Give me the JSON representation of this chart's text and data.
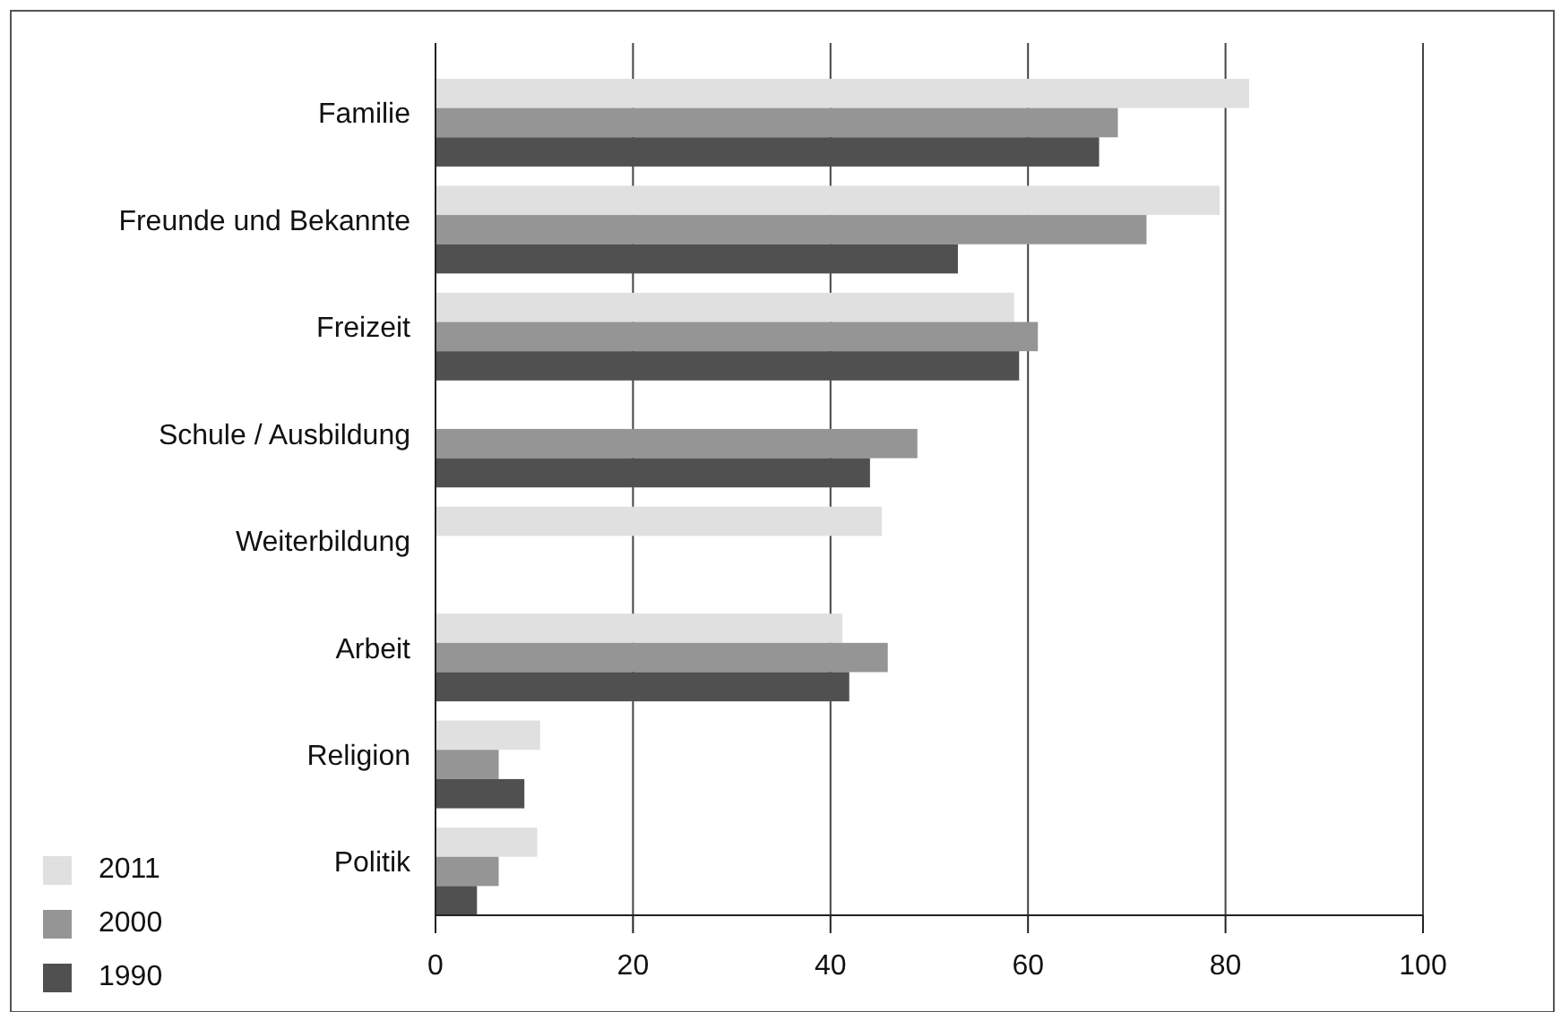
{
  "chart_data": {
    "type": "bar",
    "orientation": "horizontal",
    "categories": [
      "Familie",
      "Freunde und Bekannte",
      "Freizeit",
      "Schule / Ausbildung",
      "Weiterbildung",
      "Arbeit",
      "Religion",
      "Politik"
    ],
    "series": [
      {
        "name": "2011",
        "color": "#e0e0e0",
        "values": [
          82.4,
          79.4,
          58.6,
          null,
          45.2,
          41.2,
          10.6,
          10.3
        ]
      },
      {
        "name": "2000",
        "color": "#959595",
        "values": [
          69.1,
          72,
          61,
          48.8,
          null,
          45.8,
          6.4,
          6.4
        ]
      },
      {
        "name": "1990",
        "color": "#505050",
        "values": [
          67.2,
          52.9,
          59.1,
          44,
          null,
          41.9,
          9,
          4.2
        ]
      }
    ],
    "xlim": [
      0,
      100
    ],
    "xticks": [
      0,
      20,
      40,
      60,
      80,
      100
    ],
    "grid": "x",
    "legend": "bottom left"
  }
}
